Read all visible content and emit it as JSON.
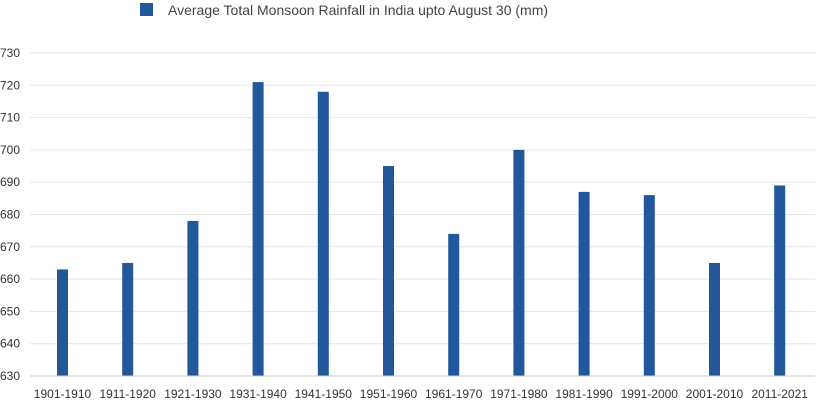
{
  "chart_data": {
    "type": "bar",
    "categories": [
      "1901-1910",
      "1911-1920",
      "1921-1930",
      "1931-1940",
      "1941-1950",
      "1951-1960",
      "1961-1970",
      "1971-1980",
      "1981-1990",
      "1991-2000",
      "2001-2010",
      "2011-2021"
    ],
    "series": [
      {
        "name": "Average Total Monsoon Rainfall in India upto August 30 (mm)",
        "values": [
          663,
          665,
          678,
          721,
          718,
          695,
          674,
          700,
          687,
          686,
          665,
          689
        ],
        "color": "#23579b"
      }
    ],
    "legend_position": "top",
    "ylim": [
      630,
      730
    ],
    "yticks": [
      630,
      640,
      650,
      660,
      670,
      680,
      690,
      700,
      710,
      720,
      730
    ],
    "grid": true,
    "xlabel": "",
    "ylabel": ""
  }
}
